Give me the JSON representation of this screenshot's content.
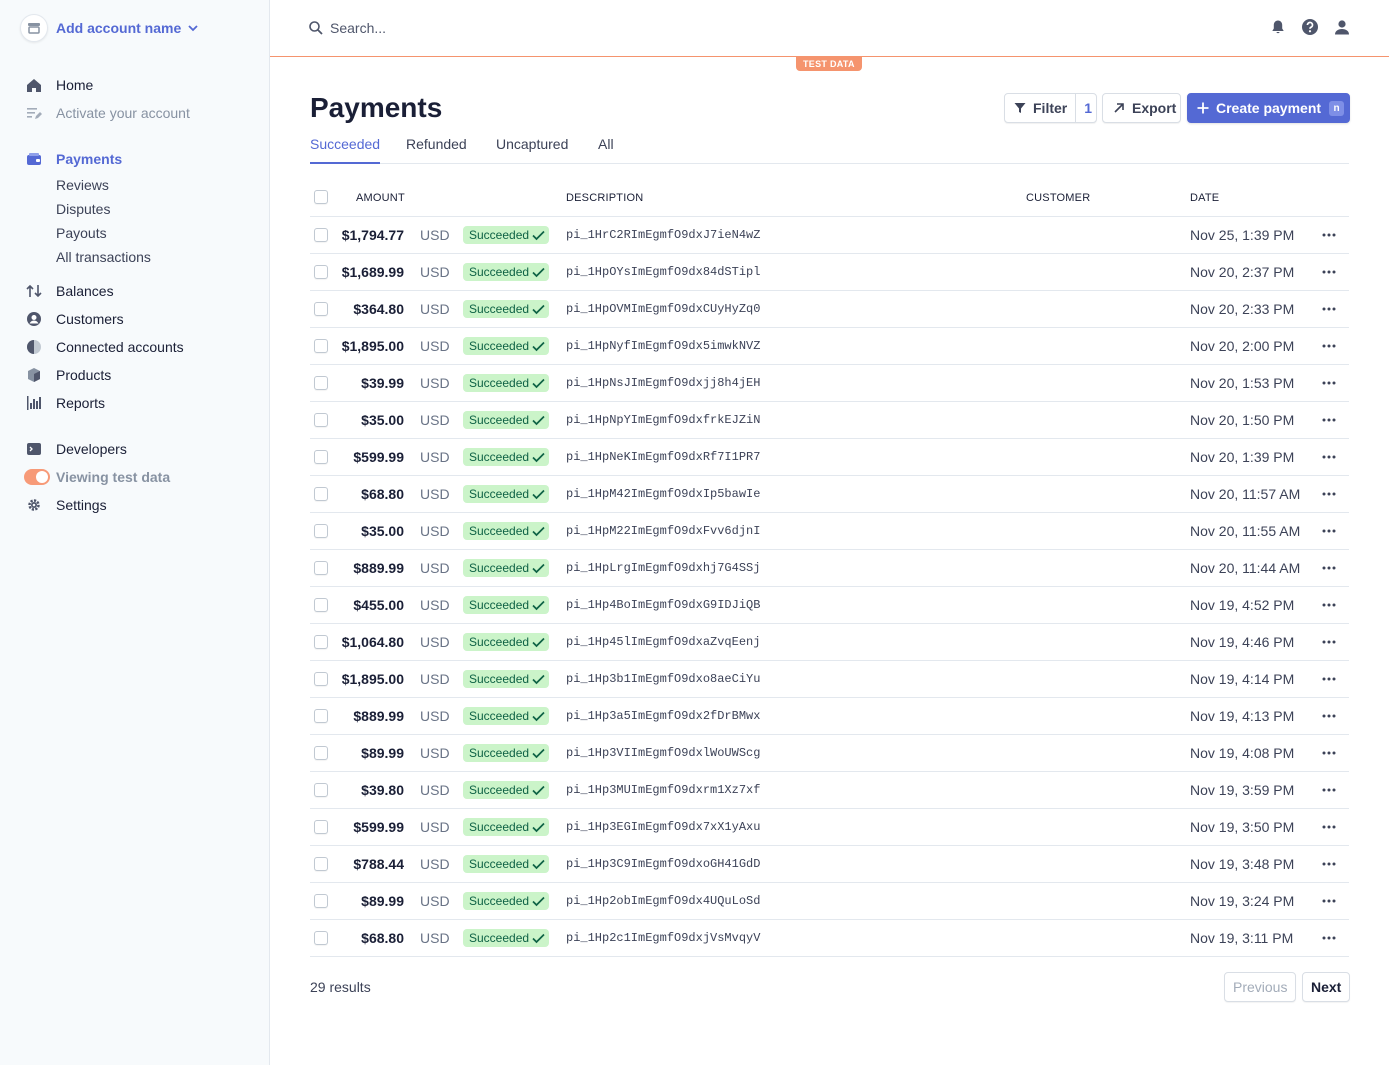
{
  "account": {
    "name": "Add account name"
  },
  "sidebar": {
    "items": [
      {
        "label": "Home"
      },
      {
        "label": "Activate your account"
      },
      {
        "label": "Payments"
      },
      {
        "label": "Balances"
      },
      {
        "label": "Customers"
      },
      {
        "label": "Connected accounts"
      },
      {
        "label": "Products"
      },
      {
        "label": "Reports"
      },
      {
        "label": "Developers"
      },
      {
        "label": "Viewing test data"
      },
      {
        "label": "Settings"
      }
    ],
    "payments_sub": [
      {
        "label": "Reviews"
      },
      {
        "label": "Disputes"
      },
      {
        "label": "Payouts"
      },
      {
        "label": "All transactions"
      }
    ]
  },
  "search": {
    "placeholder": "Search..."
  },
  "test_badge": "TEST DATA",
  "page": {
    "title": "Payments",
    "filter_label": "Filter",
    "filter_count": "1",
    "export_label": "Export",
    "create_label": "Create payment",
    "create_shortcut": "n"
  },
  "tabs": [
    {
      "label": "Succeeded",
      "active": true
    },
    {
      "label": "Refunded"
    },
    {
      "label": "Uncaptured"
    },
    {
      "label": "All"
    }
  ],
  "table": {
    "columns": {
      "amount": "AMOUNT",
      "description": "DESCRIPTION",
      "customer": "CUSTOMER",
      "date": "DATE"
    },
    "rows": [
      {
        "amount": "$1,794.77",
        "currency": "USD",
        "status": "Succeeded",
        "description": "pi_1HrC2RImEgmfO9dxJ7ieN4wZ",
        "customer": "",
        "date": "Nov 25, 1:39 PM"
      },
      {
        "amount": "$1,689.99",
        "currency": "USD",
        "status": "Succeeded",
        "description": "pi_1HpOYsImEgmfO9dx84dSTipl",
        "customer": "",
        "date": "Nov 20, 2:37 PM"
      },
      {
        "amount": "$364.80",
        "currency": "USD",
        "status": "Succeeded",
        "description": "pi_1HpOVMImEgmfO9dxCUyHyZq0",
        "customer": "",
        "date": "Nov 20, 2:33 PM"
      },
      {
        "amount": "$1,895.00",
        "currency": "USD",
        "status": "Succeeded",
        "description": "pi_1HpNyfImEgmfO9dx5imwkNVZ",
        "customer": "",
        "date": "Nov 20, 2:00 PM"
      },
      {
        "amount": "$39.99",
        "currency": "USD",
        "status": "Succeeded",
        "description": "pi_1HpNsJImEgmfO9dxjj8h4jEH",
        "customer": "",
        "date": "Nov 20, 1:53 PM"
      },
      {
        "amount": "$35.00",
        "currency": "USD",
        "status": "Succeeded",
        "description": "pi_1HpNpYImEgmfO9dxfrkEJZiN",
        "customer": "",
        "date": "Nov 20, 1:50 PM"
      },
      {
        "amount": "$599.99",
        "currency": "USD",
        "status": "Succeeded",
        "description": "pi_1HpNeKImEgmfO9dxRf7I1PR7",
        "customer": "",
        "date": "Nov 20, 1:39 PM"
      },
      {
        "amount": "$68.80",
        "currency": "USD",
        "status": "Succeeded",
        "description": "pi_1HpM42ImEgmfO9dxIp5bawIe",
        "customer": "",
        "date": "Nov 20, 11:57 AM"
      },
      {
        "amount": "$35.00",
        "currency": "USD",
        "status": "Succeeded",
        "description": "pi_1HpM22ImEgmfO9dxFvv6djnI",
        "customer": "",
        "date": "Nov 20, 11:55 AM"
      },
      {
        "amount": "$889.99",
        "currency": "USD",
        "status": "Succeeded",
        "description": "pi_1HpLrgImEgmfO9dxhj7G4SSj",
        "customer": "",
        "date": "Nov 20, 11:44 AM"
      },
      {
        "amount": "$455.00",
        "currency": "USD",
        "status": "Succeeded",
        "description": "pi_1Hp4BoImEgmfO9dxG9IDJiQB",
        "customer": "",
        "date": "Nov 19, 4:52 PM"
      },
      {
        "amount": "$1,064.80",
        "currency": "USD",
        "status": "Succeeded",
        "description": "pi_1Hp45lImEgmfO9dxaZvqEenj",
        "customer": "",
        "date": "Nov 19, 4:46 PM"
      },
      {
        "amount": "$1,895.00",
        "currency": "USD",
        "status": "Succeeded",
        "description": "pi_1Hp3b1ImEgmfO9dxo8aeCiYu",
        "customer": "",
        "date": "Nov 19, 4:14 PM"
      },
      {
        "amount": "$889.99",
        "currency": "USD",
        "status": "Succeeded",
        "description": "pi_1Hp3a5ImEgmfO9dx2fDrBMwx",
        "customer": "",
        "date": "Nov 19, 4:13 PM"
      },
      {
        "amount": "$89.99",
        "currency": "USD",
        "status": "Succeeded",
        "description": "pi_1Hp3VIImEgmfO9dxlWoUWScg",
        "customer": "",
        "date": "Nov 19, 4:08 PM"
      },
      {
        "amount": "$39.80",
        "currency": "USD",
        "status": "Succeeded",
        "description": "pi_1Hp3MUImEgmfO9dxrm1Xz7xf",
        "customer": "",
        "date": "Nov 19, 3:59 PM"
      },
      {
        "amount": "$599.99",
        "currency": "USD",
        "status": "Succeeded",
        "description": "pi_1Hp3EGImEgmfO9dx7xX1yAxu",
        "customer": "",
        "date": "Nov 19, 3:50 PM"
      },
      {
        "amount": "$788.44",
        "currency": "USD",
        "status": "Succeeded",
        "description": "pi_1Hp3C9ImEgmfO9dxoGH41GdD",
        "customer": "",
        "date": "Nov 19, 3:48 PM"
      },
      {
        "amount": "$89.99",
        "currency": "USD",
        "status": "Succeeded",
        "description": "pi_1Hp2obImEgmfO9dx4UQuLoSd",
        "customer": "",
        "date": "Nov 19, 3:24 PM"
      },
      {
        "amount": "$68.80",
        "currency": "USD",
        "status": "Succeeded",
        "description": "pi_1Hp2c1ImEgmfO9dxjVsMvqyV",
        "customer": "",
        "date": "Nov 19, 3:11 PM"
      }
    ]
  },
  "pagination": {
    "results": "29 results",
    "previous": "Previous",
    "next": "Next"
  },
  "colors": {
    "accent": "#5469d4",
    "test_mode": "#f5946e",
    "success_bg": "#cbf4c9",
    "success_text": "#0e6245"
  },
  "icons": {
    "account": "store-icon",
    "home": "home-icon",
    "activate": "list-pencil-icon",
    "payments": "wallet-icon",
    "balances": "arrows-updown-icon",
    "customers": "person-circle-icon",
    "connected": "globe-icon",
    "products": "box-icon",
    "reports": "bar-chart-icon",
    "developers": "terminal-icon",
    "settings": "gear-icon"
  }
}
